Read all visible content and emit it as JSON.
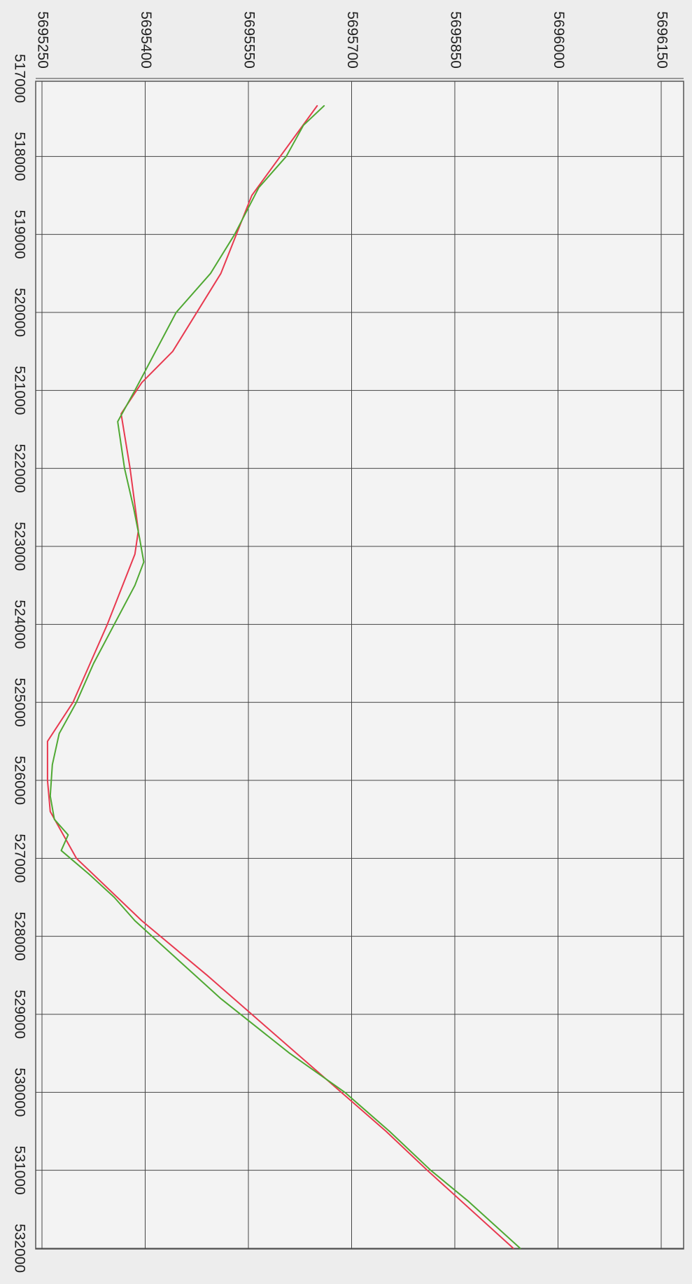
{
  "chart_data": {
    "type": "line",
    "orientation": "rotated-90-clockwise",
    "title": "",
    "xlabel": "",
    "ylabel": "",
    "xlim": [
      517000,
      532000
    ],
    "ylim": [
      5695250,
      5696150
    ],
    "x_ticks": [
      517000,
      518000,
      519000,
      520000,
      521000,
      522000,
      523000,
      524000,
      525000,
      526000,
      527000,
      528000,
      529000,
      530000,
      531000,
      532000
    ],
    "y_ticks": [
      5695250,
      5695400,
      5695550,
      5695700,
      5695850,
      5696000,
      5696150
    ],
    "x_tick_labels": [
      "517000",
      "518000",
      "519000",
      "520000",
      "521000",
      "522000",
      "523000",
      "524000",
      "525000",
      "526000",
      "527000",
      "528000",
      "529000",
      "530000",
      "531000",
      "532000"
    ],
    "y_tick_labels": [
      "5695250",
      "5695400",
      "5695550",
      "5695700",
      "5695850",
      "5696000",
      "5696150"
    ],
    "grid": true,
    "legend": "none",
    "series": [
      {
        "color": "#e8394f",
        "x": [
          517350,
          518500,
          519500,
          520500,
          520900,
          521300,
          522000,
          522800,
          523100,
          524000,
          525000,
          525500,
          526000,
          526400,
          527000,
          527800,
          528500,
          529500,
          530500,
          531000,
          532000
        ],
        "y": [
          5695650,
          5695555,
          5695510,
          5695440,
          5695395,
          5695365,
          5695378,
          5695390,
          5695385,
          5695345,
          5695295,
          5695258,
          5695258,
          5695262,
          5695300,
          5695395,
          5695490,
          5695620,
          5695750,
          5695810,
          5695935
        ]
      },
      {
        "color": "#4fa832",
        "x": [
          517350,
          517600,
          518000,
          518400,
          519000,
          519500,
          520000,
          520500,
          521000,
          521400,
          522000,
          522500,
          522900,
          523200,
          523500,
          524000,
          524500,
          525000,
          525400,
          525800,
          526200,
          526500,
          526700,
          526900,
          527200,
          527500,
          527800,
          528200,
          528800,
          529500,
          530000,
          530500,
          531000,
          531400,
          532000
        ],
        "y": [
          5695660,
          5695630,
          5695605,
          5695565,
          5695530,
          5695495,
          5695445,
          5695415,
          5695385,
          5695360,
          5695370,
          5695383,
          5695392,
          5695398,
          5695385,
          5695355,
          5695325,
          5695300,
          5695275,
          5695265,
          5695262,
          5695268,
          5695288,
          5695278,
          5695318,
          5695355,
          5695385,
          5695435,
          5695510,
          5695610,
          5695690,
          5695755,
          5695815,
          5695870,
          5695945
        ]
      }
    ]
  }
}
